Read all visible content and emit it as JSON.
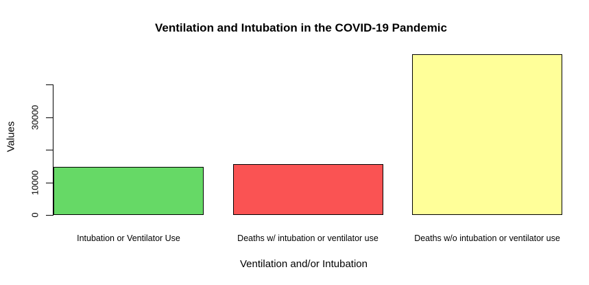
{
  "figure": {
    "background": "#ffffff",
    "text_color": "#000000",
    "axis_color": "#000000"
  },
  "chart_data": {
    "type": "bar",
    "title": "Ventilation and Intubation in the COVID-19 Pandemic",
    "xlabel": "Ventilation and/or Intubation",
    "ylabel": "Values",
    "categories": [
      "Intubation or Ventilator Use",
      "Deaths w/ intubation or ventilator use",
      "Deaths w/o intubation or ventilator use"
    ],
    "values": [
      14800,
      15600,
      49300
    ],
    "bar_colors": [
      "#66d966",
      "#fa5353",
      "#ffff99"
    ],
    "bar_border_color": "#000000",
    "ylim": [
      0,
      49400
    ],
    "yticks": [
      {
        "value": 0,
        "label": "0"
      },
      {
        "value": 10000,
        "label": "10000"
      },
      {
        "value": 20000,
        "label": ""
      },
      {
        "value": 30000,
        "label": "30000"
      },
      {
        "value": 40000,
        "label": ""
      }
    ],
    "grid": false,
    "legend_position": "none"
  }
}
